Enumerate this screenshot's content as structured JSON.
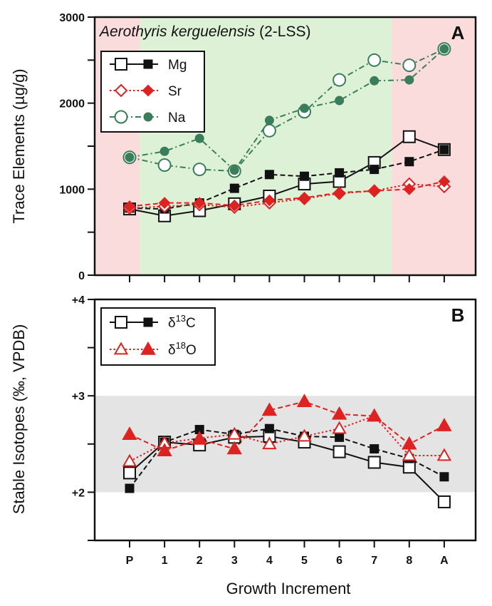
{
  "chart_data": [
    {
      "type": "line",
      "panel": "A",
      "title_species": "Aerothyris kerguelensis",
      "title_suffix": " (2-LSS)",
      "xlabel": "Growth Increment",
      "ylabel": "Trace Elements (µg/g)",
      "categories": [
        "P",
        "1",
        "2",
        "3",
        "4",
        "5",
        "6",
        "7",
        "8",
        "A"
      ],
      "ylim": [
        0,
        3000
      ],
      "yticks": [
        "0",
        "1000",
        "2000",
        "3000"
      ],
      "background_bands": [
        {
          "from": "P",
          "to": "1",
          "color": "#fadcdc"
        },
        {
          "from": "1",
          "to": "8",
          "color": "#ddf1d6"
        },
        {
          "from": "8",
          "to": "A",
          "color": "#fadcdc"
        }
      ],
      "legend_position": "top-left",
      "series": [
        {
          "name": "Mg",
          "color": "#111111",
          "marker": "square",
          "line_style": "solid",
          "values": [
            770,
            690,
            750,
            830,
            920,
            1060,
            1090,
            1310,
            1610,
            1460
          ]
        },
        {
          "name": "Mg",
          "color": "#111111",
          "marker": "square",
          "filled": true,
          "line_style": "dashed",
          "values": [
            780,
            770,
            840,
            1010,
            1170,
            1150,
            1190,
            1230,
            1320,
            1460
          ]
        },
        {
          "name": "Sr",
          "color": "#dd2222",
          "marker": "diamond",
          "line_style": "dotted",
          "values": [
            780,
            800,
            820,
            790,
            840,
            890,
            950,
            980,
            1060,
            1030
          ]
        },
        {
          "name": "Sr",
          "color": "#dd2222",
          "marker": "diamond",
          "filled": true,
          "line_style": "dashed",
          "values": [
            800,
            840,
            840,
            810,
            870,
            900,
            960,
            980,
            1000,
            1090
          ]
        },
        {
          "name": "Na",
          "color": "#3a7d5a",
          "marker": "circle",
          "line_style": "dashdot",
          "values": [
            1370,
            1280,
            1230,
            1210,
            1680,
            1900,
            2270,
            2500,
            2440,
            2630
          ]
        },
        {
          "name": "Na",
          "color": "#3a7d5a",
          "marker": "circle",
          "filled": true,
          "line_style": "dashdot",
          "values": [
            1370,
            1440,
            1590,
            1220,
            1800,
            1940,
            2030,
            2260,
            2270,
            2630
          ]
        }
      ],
      "legend": [
        {
          "label": "Mg",
          "color": "#111111",
          "marker": "square"
        },
        {
          "label": "Sr",
          "color": "#dd2222",
          "marker": "diamond"
        },
        {
          "label": "Na",
          "color": "#3a7d5a",
          "marker": "circle"
        }
      ]
    },
    {
      "type": "line",
      "panel": "B",
      "xlabel": "Growth Increment",
      "ylabel": "Stable Isotopes (‰, VPDB)",
      "categories": [
        "P",
        "1",
        "2",
        "3",
        "4",
        "5",
        "6",
        "7",
        "8",
        "A"
      ],
      "ylim": [
        1.5,
        4.0
      ],
      "yticks": [
        "+2",
        "+3",
        "+4"
      ],
      "shaded_range": {
        "from": 2.0,
        "to": 3.0,
        "color": "#e4e4e4"
      },
      "legend_position": "top-left",
      "series": [
        {
          "name": "δ13C",
          "color": "#111111",
          "marker": "square",
          "line_style": "solid",
          "values": [
            2.2,
            2.52,
            2.49,
            2.57,
            2.58,
            2.52,
            2.42,
            2.31,
            2.26,
            1.9
          ]
        },
        {
          "name": "δ13C",
          "color": "#111111",
          "marker": "square",
          "filled": true,
          "line_style": "dashed",
          "values": [
            2.04,
            2.52,
            2.65,
            2.6,
            2.66,
            2.58,
            2.57,
            2.45,
            2.35,
            2.16
          ]
        },
        {
          "name": "δ18O",
          "color": "#dd2222",
          "marker": "triangle",
          "line_style": "dotted",
          "values": [
            2.32,
            2.51,
            2.56,
            2.6,
            2.5,
            2.58,
            2.66,
            2.79,
            2.38,
            2.38
          ]
        },
        {
          "name": "δ18O",
          "color": "#dd2222",
          "marker": "triangle",
          "filled": true,
          "line_style": "dashed",
          "values": [
            2.6,
            2.43,
            2.55,
            2.45,
            2.85,
            2.94,
            2.81,
            2.79,
            2.5,
            2.69
          ]
        }
      ],
      "legend": [
        {
          "label_prefix": "δ",
          "label_sup": "13",
          "label_suffix": "C",
          "color": "#111111",
          "marker": "square"
        },
        {
          "label_prefix": "δ",
          "label_sup": "18",
          "label_suffix": "O",
          "color": "#dd2222",
          "marker": "triangle"
        }
      ]
    }
  ]
}
